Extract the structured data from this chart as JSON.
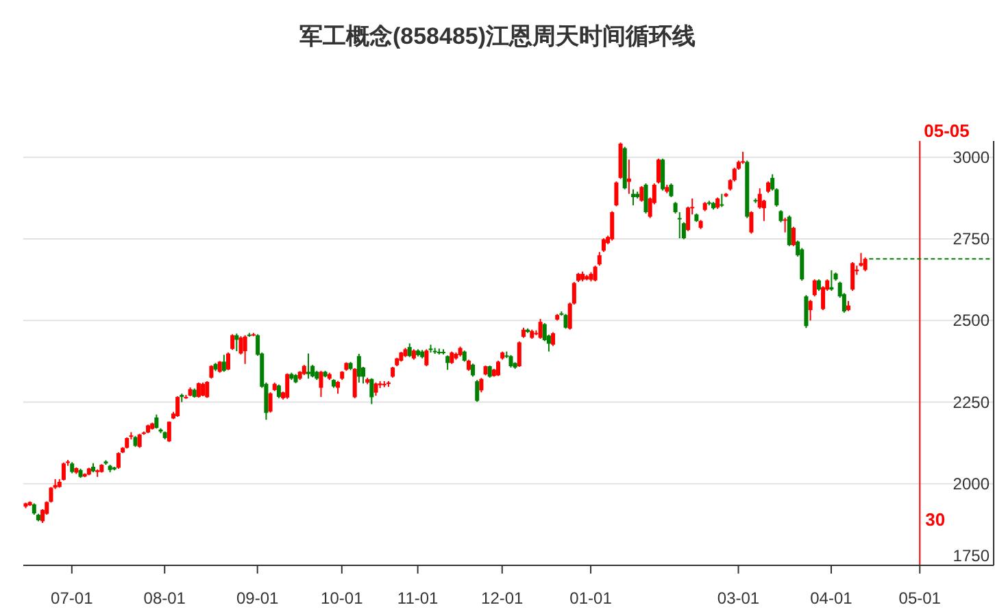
{
  "chart_data": {
    "type": "candlestick",
    "title": "军工概念(858485)江恩周天时间循环线",
    "categories": [
      null,
      null,
      null,
      null,
      null,
      null,
      null,
      null,
      null,
      null,
      null,
      "07-01",
      null,
      null,
      null,
      null,
      null,
      null,
      null,
      null,
      null,
      null,
      null,
      null,
      null,
      null,
      null,
      null,
      null,
      null,
      null,
      null,
      null,
      "08-01",
      null,
      null,
      null,
      null,
      null,
      null,
      null,
      null,
      null,
      null,
      null,
      null,
      null,
      null,
      null,
      null,
      null,
      null,
      null,
      null,
      null,
      "09-01",
      null,
      null,
      null,
      null,
      null,
      null,
      null,
      null,
      null,
      null,
      null,
      null,
      null,
      null,
      null,
      null,
      null,
      null,
      null,
      "10-01",
      null,
      null,
      null,
      null,
      null,
      null,
      null,
      null,
      null,
      null,
      null,
      null,
      null,
      null,
      null,
      null,
      null,
      "11-01",
      null,
      null,
      null,
      null,
      null,
      null,
      null,
      null,
      null,
      null,
      null,
      null,
      null,
      null,
      null,
      null,
      null,
      null,
      null,
      "12-01",
      null,
      null,
      null,
      null,
      null,
      null,
      null,
      null,
      null,
      null,
      null,
      null,
      null,
      null,
      null,
      null,
      null,
      null,
      null,
      null,
      "01-01",
      null,
      null,
      null,
      null,
      null,
      null,
      null,
      null,
      null,
      null,
      null,
      null,
      null,
      null,
      null,
      null,
      null,
      null,
      null,
      null,
      null,
      null,
      null,
      null,
      null,
      null,
      null,
      null,
      null,
      null,
      null,
      null,
      null,
      null,
      "03-01",
      null,
      null,
      null,
      null,
      null,
      null,
      null,
      null,
      null,
      null,
      null,
      null,
      null,
      null,
      null,
      null,
      null,
      null,
      null,
      null,
      null,
      "04-01",
      null,
      null,
      null,
      null,
      null,
      null,
      null,
      null,
      null,
      null,
      null,
      null,
      null,
      null,
      null,
      null,
      null,
      null,
      null,
      null,
      "05-01",
      null,
      null,
      null,
      null,
      null,
      null,
      null,
      null,
      null,
      null,
      null,
      null,
      null,
      null,
      null,
      null,
      null
    ],
    "ohlc": [
      [
        1930,
        1942,
        1925,
        1940
      ],
      [
        1934,
        1946,
        1932,
        1944
      ],
      [
        1937,
        1940,
        1905,
        1909
      ],
      [
        1905,
        1908,
        1885,
        1888
      ],
      [
        1885,
        1922,
        1880,
        1920
      ],
      [
        1908,
        1946,
        1905,
        1944
      ],
      [
        1945,
        1990,
        1942,
        1988
      ],
      [
        1988,
        2014,
        1984,
        1996
      ],
      [
        1990,
        2014,
        1988,
        2006
      ],
      [
        2012,
        2065,
        2010,
        2062
      ],
      [
        2064,
        2073,
        2055,
        2068
      ],
      [
        2062,
        2066,
        2032,
        2036
      ],
      [
        2034,
        2050,
        2030,
        2048
      ],
      [
        2042,
        2046,
        2018,
        2021
      ],
      [
        2022,
        2032,
        2020,
        2030
      ],
      [
        2028,
        2049,
        2026,
        2047
      ],
      [
        2052,
        2063,
        2035,
        2038
      ],
      [
        2036,
        2044,
        2021,
        2041
      ],
      [
        2036,
        2060,
        2034,
        2058
      ],
      [
        2068,
        2072,
        2058,
        2062
      ],
      [
        2055,
        2058,
        2035,
        2042
      ],
      [
        2050,
        2052,
        2041,
        2044
      ],
      [
        2049,
        2096,
        2046,
        2094
      ],
      [
        2096,
        2112,
        2094,
        2110
      ],
      [
        2110,
        2142,
        2108,
        2140
      ],
      [
        2144,
        2158,
        2136,
        2148
      ],
      [
        2143,
        2146,
        2113,
        2116
      ],
      [
        2113,
        2153,
        2110,
        2151
      ],
      [
        2155,
        2160,
        2150,
        2157
      ],
      [
        2157,
        2181,
        2155,
        2179
      ],
      [
        2168,
        2187,
        2166,
        2185
      ],
      [
        2203,
        2212,
        2169,
        2171
      ],
      [
        2166,
        2170,
        2155,
        2160
      ],
      [
        2158,
        2160,
        2136,
        2140
      ],
      [
        2130,
        2191,
        2128,
        2190
      ],
      [
        2200,
        2220,
        2198,
        2215
      ],
      [
        2207,
        2268,
        2205,
        2266
      ],
      [
        2272,
        2276,
        2250,
        2266
      ],
      [
        2262,
        2272,
        2260,
        2266
      ],
      [
        2270,
        2295,
        2268,
        2290
      ],
      [
        2288,
        2292,
        2264,
        2266
      ],
      [
        2266,
        2310,
        2264,
        2308
      ],
      [
        2270,
        2310,
        2268,
        2306
      ],
      [
        2265,
        2314,
        2263,
        2312
      ],
      [
        2325,
        2363,
        2322,
        2361
      ],
      [
        2367,
        2370,
        2345,
        2350
      ],
      [
        2343,
        2376,
        2340,
        2374
      ],
      [
        2374,
        2395,
        2343,
        2346
      ],
      [
        2350,
        2402,
        2348,
        2399
      ],
      [
        2413,
        2458,
        2410,
        2455
      ],
      [
        2455,
        2460,
        2406,
        2441
      ],
      [
        2399,
        2452,
        2396,
        2448
      ],
      [
        2406,
        2455,
        2367,
        2451
      ],
      [
        2457,
        2462,
        2450,
        2453
      ],
      [
        2455,
        2462,
        2452,
        2458
      ],
      [
        2455,
        2458,
        2392,
        2395
      ],
      [
        2399,
        2402,
        2294,
        2297
      ],
      [
        2306,
        2310,
        2196,
        2217
      ],
      [
        2221,
        2280,
        2218,
        2277
      ],
      [
        2287,
        2310,
        2284,
        2306
      ],
      [
        2301,
        2304,
        2262,
        2266
      ],
      [
        2262,
        2282,
        2258,
        2280
      ],
      [
        2264,
        2338,
        2260,
        2336
      ],
      [
        2336,
        2340,
        2318,
        2322
      ],
      [
        2333,
        2336,
        2308,
        2311
      ],
      [
        2322,
        2345,
        2318,
        2343
      ],
      [
        2336,
        2364,
        2333,
        2361
      ],
      [
        2343,
        2399,
        2322,
        2336
      ],
      [
        2361,
        2364,
        2326,
        2329
      ],
      [
        2343,
        2346,
        2318,
        2322
      ],
      [
        2294,
        2346,
        2266,
        2343
      ],
      [
        2343,
        2346,
        2326,
        2329
      ],
      [
        2322,
        2340,
        2318,
        2336
      ],
      [
        2318,
        2320,
        2294,
        2298
      ],
      [
        2294,
        2315,
        2276,
        2312
      ],
      [
        2322,
        2345,
        2318,
        2343
      ],
      [
        2349,
        2372,
        2346,
        2370
      ],
      [
        2370,
        2373,
        2348,
        2352
      ],
      [
        2265,
        2354,
        2262,
        2352
      ],
      [
        2391,
        2398,
        2310,
        2328
      ],
      [
        2356,
        2358,
        2307,
        2328
      ],
      [
        2310,
        2325,
        2305,
        2320
      ],
      [
        2321,
        2323,
        2244,
        2265
      ],
      [
        2279,
        2310,
        2270,
        2307
      ],
      [
        2302,
        2314,
        2293,
        2307
      ],
      [
        2303,
        2314,
        2296,
        2306
      ],
      [
        2307,
        2314,
        2297,
        2310
      ],
      [
        2328,
        2358,
        2325,
        2356
      ],
      [
        2363,
        2386,
        2360,
        2384
      ],
      [
        2377,
        2404,
        2374,
        2402
      ],
      [
        2391,
        2416,
        2388,
        2412
      ],
      [
        2419,
        2430,
        2388,
        2391
      ],
      [
        2384,
        2412,
        2380,
        2408
      ],
      [
        2408,
        2412,
        2390,
        2394
      ],
      [
        2405,
        2410,
        2384,
        2388
      ],
      [
        2363,
        2412,
        2360,
        2408
      ],
      [
        2414,
        2426,
        2402,
        2410
      ],
      [
        2407,
        2416,
        2398,
        2404
      ],
      [
        2404,
        2414,
        2396,
        2400
      ],
      [
        2404,
        2412,
        2396,
        2400
      ],
      [
        2391,
        2393,
        2349,
        2370
      ],
      [
        2370,
        2405,
        2367,
        2402
      ],
      [
        2384,
        2402,
        2380,
        2398
      ],
      [
        2394,
        2420,
        2390,
        2416
      ],
      [
        2405,
        2408,
        2374,
        2377
      ],
      [
        2349,
        2380,
        2346,
        2377
      ],
      [
        2365,
        2368,
        2328,
        2332
      ],
      [
        2314,
        2318,
        2251,
        2254
      ],
      [
        2286,
        2324,
        2280,
        2321
      ],
      [
        2335,
        2362,
        2332,
        2360
      ],
      [
        2360,
        2362,
        2325,
        2328
      ],
      [
        2330,
        2352,
        2328,
        2350
      ],
      [
        2332,
        2377,
        2330,
        2374
      ],
      [
        2384,
        2405,
        2380,
        2402
      ],
      [
        2393,
        2405,
        2385,
        2389
      ],
      [
        2391,
        2394,
        2356,
        2360
      ],
      [
        2370,
        2372,
        2352,
        2356
      ],
      [
        2360,
        2436,
        2358,
        2433
      ],
      [
        2450,
        2478,
        2447,
        2472
      ],
      [
        2472,
        2476,
        2462,
        2465
      ],
      [
        2447,
        2472,
        2444,
        2468
      ],
      [
        2458,
        2470,
        2455,
        2462
      ],
      [
        2447,
        2505,
        2444,
        2496
      ],
      [
        2489,
        2492,
        2437,
        2440
      ],
      [
        2454,
        2457,
        2405,
        2429
      ],
      [
        2426,
        2464,
        2422,
        2461
      ],
      [
        2503,
        2520,
        2500,
        2517
      ],
      [
        2522,
        2528,
        2515,
        2518
      ],
      [
        2517,
        2520,
        2475,
        2478
      ],
      [
        2475,
        2555,
        2472,
        2552
      ],
      [
        2552,
        2618,
        2549,
        2615
      ],
      [
        2622,
        2646,
        2618,
        2643
      ],
      [
        2625,
        2650,
        2620,
        2643
      ],
      [
        2626,
        2640,
        2623,
        2636
      ],
      [
        2625,
        2648,
        2620,
        2643
      ],
      [
        2623,
        2668,
        2620,
        2665
      ],
      [
        2672,
        2710,
        2668,
        2700
      ],
      [
        2714,
        2752,
        2710,
        2749
      ],
      [
        2737,
        2760,
        2734,
        2756
      ],
      [
        2749,
        2835,
        2745,
        2832
      ],
      [
        2853,
        2926,
        2850,
        2923
      ],
      [
        2937,
        3045,
        2934,
        3042
      ],
      [
        3028,
        3032,
        2902,
        2905
      ],
      [
        2925,
        2993,
        2888,
        2935
      ],
      [
        2888,
        2902,
        2853,
        2878
      ],
      [
        2888,
        2895,
        2874,
        2878
      ],
      [
        2867,
        2912,
        2864,
        2909
      ],
      [
        2916,
        2920,
        2828,
        2832
      ],
      [
        2818,
        2877,
        2814,
        2874
      ],
      [
        2860,
        2920,
        2856,
        2916
      ],
      [
        2923,
        2996,
        2920,
        2993
      ],
      [
        2993,
        2996,
        2898,
        2902
      ],
      [
        2895,
        2916,
        2890,
        2909
      ],
      [
        2916,
        2920,
        2878,
        2881
      ],
      [
        2860,
        2863,
        2828,
        2832
      ],
      [
        2814,
        2832,
        2752,
        2810
      ],
      [
        2798,
        2801,
        2749,
        2752
      ],
      [
        2777,
        2849,
        2774,
        2846
      ],
      [
        2844,
        2874,
        2825,
        2848
      ],
      [
        2825,
        2828,
        2802,
        2805
      ],
      [
        2784,
        2808,
        2780,
        2805
      ],
      [
        2839,
        2863,
        2835,
        2860
      ],
      [
        2862,
        2867,
        2853,
        2858
      ],
      [
        2860,
        2863,
        2840,
        2844
      ],
      [
        2846,
        2877,
        2842,
        2874
      ],
      [
        2856,
        2888,
        2848,
        2852
      ],
      [
        2881,
        2891,
        2878,
        2888
      ],
      [
        2902,
        2933,
        2898,
        2930
      ],
      [
        2930,
        2968,
        2926,
        2965
      ],
      [
        2965,
        2990,
        2962,
        2986
      ],
      [
        2984,
        3017,
        2980,
        2988
      ],
      [
        2986,
        2990,
        2814,
        2818
      ],
      [
        2770,
        2835,
        2766,
        2832
      ],
      [
        2869,
        2874,
        2860,
        2865
      ],
      [
        2846,
        2905,
        2842,
        2888
      ],
      [
        2844,
        2870,
        2805,
        2867
      ],
      [
        2895,
        2926,
        2891,
        2923
      ],
      [
        2937,
        2948,
        2898,
        2902
      ],
      [
        2902,
        2905,
        2849,
        2853
      ],
      [
        2835,
        2838,
        2801,
        2805
      ],
      [
        2807,
        2815,
        2770,
        2810
      ],
      [
        2818,
        2822,
        2728,
        2731
      ],
      [
        2731,
        2787,
        2728,
        2784
      ],
      [
        2742,
        2745,
        2696,
        2700
      ],
      [
        2718,
        2722,
        2622,
        2626
      ],
      [
        2574,
        2578,
        2477,
        2483
      ],
      [
        2532,
        2563,
        2500,
        2560
      ],
      [
        2578,
        2626,
        2574,
        2623
      ],
      [
        2623,
        2626,
        2591,
        2595
      ],
      [
        2535,
        2605,
        2532,
        2602
      ],
      [
        2595,
        2626,
        2591,
        2623
      ],
      [
        2602,
        2654,
        2591,
        2595
      ],
      [
        2644,
        2647,
        2622,
        2626
      ],
      [
        2616,
        2619,
        2570,
        2574
      ],
      [
        2581,
        2584,
        2524,
        2528
      ],
      [
        2532,
        2560,
        2529,
        2546
      ],
      [
        2595,
        2679,
        2591,
        2676
      ],
      [
        2651,
        2668,
        2640,
        2656
      ],
      [
        2668,
        2707,
        2665,
        2676
      ],
      [
        2655,
        2693,
        2651,
        2689
      ],
      null,
      null,
      null,
      null,
      null,
      null,
      null,
      null,
      null,
      null,
      null,
      null,
      null,
      null,
      null,
      null,
      null,
      null,
      null,
      null,
      null,
      null,
      null,
      null,
      null,
      null,
      null,
      null,
      null,
      null
    ],
    "colors": [
      "#ff0000",
      "#ff0000",
      "#008000",
      "#008000",
      "#ff0000",
      "#ff0000",
      "#ff0000",
      "#ff0000",
      "#ff0000",
      "#ff0000",
      "#ff0000",
      "#008000",
      "#ff0000",
      "#008000",
      "#ff0000",
      "#ff0000",
      "#008000",
      "#ff0000",
      "#ff0000",
      "#008000",
      "#008000",
      "#008000",
      "#ff0000",
      "#ff0000",
      "#ff0000",
      "#ff0000",
      "#008000",
      "#ff0000",
      "#ff0000",
      "#ff0000",
      "#ff0000",
      "#008000",
      "#008000",
      "#008000",
      "#ff0000",
      "#ff0000",
      "#ff0000",
      "#008000",
      "#ff0000",
      "#ff0000",
      "#008000",
      "#ff0000",
      "#ff0000",
      "#ff0000",
      "#ff0000",
      "#008000",
      "#ff0000",
      "#008000",
      "#ff0000",
      "#ff0000",
      "#008000",
      "#ff0000",
      "#ff0000",
      "#008000",
      "#ff0000",
      "#008000",
      "#008000",
      "#008000",
      "#ff0000",
      "#ff0000",
      "#008000",
      "#ff0000",
      "#ff0000",
      "#008000",
      "#008000",
      "#ff0000",
      "#ff0000",
      "#008000",
      "#008000",
      "#008000",
      "#ff0000",
      "#008000",
      "#ff0000",
      "#008000",
      "#ff0000",
      "#ff0000",
      "#ff0000",
      "#008000",
      "#ff0000",
      "#008000",
      "#008000",
      "#ff0000",
      "#008000",
      "#ff0000",
      "#ff0000",
      "#ff0000",
      "#ff0000",
      "#ff0000",
      "#ff0000",
      "#ff0000",
      "#ff0000",
      "#008000",
      "#ff0000",
      "#008000",
      "#008000",
      "#ff0000",
      "#008000",
      "#008000",
      "#008000",
      "#008000",
      "#008000",
      "#ff0000",
      "#ff0000",
      "#ff0000",
      "#008000",
      "#ff0000",
      "#008000",
      "#008000",
      "#ff0000",
      "#ff0000",
      "#008000",
      "#ff0000",
      "#ff0000",
      "#ff0000",
      "#008000",
      "#008000",
      "#008000",
      "#ff0000",
      "#ff0000",
      "#008000",
      "#ff0000",
      "#ff0000",
      "#ff0000",
      "#008000",
      "#008000",
      "#ff0000",
      "#ff0000",
      "#008000",
      "#008000",
      "#ff0000",
      "#ff0000",
      "#ff0000",
      "#ff0000",
      "#ff0000",
      "#ff0000",
      "#ff0000",
      "#ff0000",
      "#ff0000",
      "#ff0000",
      "#ff0000",
      "#ff0000",
      "#ff0000",
      "#008000",
      "#ff0000",
      "#008000",
      "#008000",
      "#ff0000",
      "#008000",
      "#ff0000",
      "#ff0000",
      "#ff0000",
      "#008000",
      "#ff0000",
      "#008000",
      "#008000",
      "#008000",
      "#008000",
      "#ff0000",
      "#ff0000",
      "#008000",
      "#ff0000",
      "#ff0000",
      "#008000",
      "#008000",
      "#ff0000",
      "#008000",
      "#ff0000",
      "#ff0000",
      "#ff0000",
      "#ff0000",
      "#ff0000",
      "#008000",
      "#ff0000",
      "#008000",
      "#ff0000",
      "#ff0000",
      "#ff0000",
      "#008000",
      "#008000",
      "#008000",
      "#ff0000",
      "#008000",
      "#ff0000",
      "#008000",
      "#008000",
      "#008000",
      "#ff0000",
      "#ff0000",
      "#008000",
      "#ff0000",
      "#ff0000",
      "#008000",
      "#008000",
      "#008000",
      "#008000",
      "#ff0000",
      "#ff0000",
      "#ff0000",
      "#ff0000",
      "#ff0000",
      null,
      null,
      null,
      null,
      null,
      null,
      null,
      null,
      null,
      null,
      null,
      null,
      null,
      null,
      null,
      null,
      null,
      null,
      null,
      null,
      null,
      null,
      null,
      null,
      null,
      null,
      null,
      null,
      null,
      null
    ],
    "ylim": [
      1750,
      3050
    ],
    "yticks": [
      1750,
      2000,
      2250,
      2500,
      2750,
      3000
    ],
    "grid": "y",
    "ref_lines": [
      {
        "axis": "x",
        "value": "05-01",
        "label": "05-05",
        "color": "#ff0000"
      },
      {
        "axis": "y",
        "value": 2689,
        "color": "#008000",
        "line_style": "dashed"
      }
    ],
    "annotations": [
      {
        "text": "30",
        "x": "05-01",
        "y": 1890
      }
    ]
  }
}
